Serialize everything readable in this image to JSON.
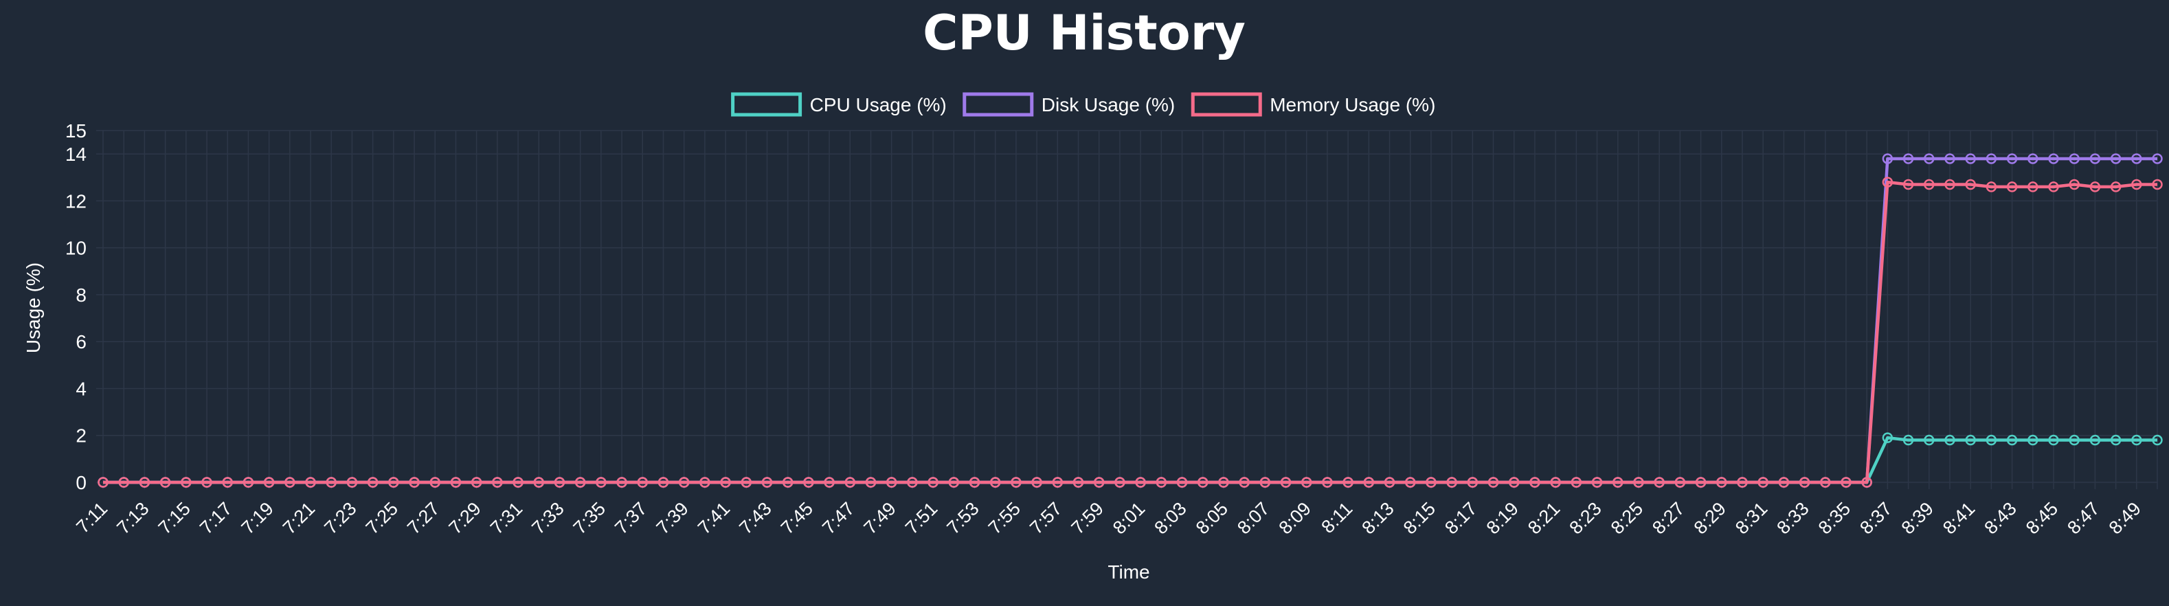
{
  "chart_data": {
    "type": "line",
    "title": "CPU History",
    "xlabel": "Time",
    "ylabel": "Usage (%)",
    "ylim": [
      0,
      15
    ],
    "y_ticks": [
      0,
      2,
      4,
      6,
      8,
      10,
      12,
      14,
      15
    ],
    "x_tick_labels": [
      "7:11",
      "7:13",
      "7:15",
      "7:17",
      "7:19",
      "7:21",
      "7:23",
      "7:25",
      "7:27",
      "7:29",
      "7:31",
      "7:33",
      "7:35",
      "7:37",
      "7:39",
      "7:41",
      "7:43",
      "7:45",
      "7:47",
      "7:49",
      "7:51",
      "7:53",
      "7:55",
      "7:57",
      "7:59",
      "8:01",
      "8:03",
      "8:05",
      "8:07",
      "8:09",
      "8:11",
      "8:13",
      "8:15",
      "8:17",
      "8:19",
      "8:21",
      "8:23",
      "8:25",
      "8:27",
      "8:29",
      "8:31",
      "8:33",
      "8:35",
      "8:37",
      "8:39",
      "8:41",
      "8:43",
      "8:45",
      "8:47",
      "8:49"
    ],
    "x_start": "7:11",
    "x_end": "8:50",
    "legend_position": "top-center",
    "grid": true,
    "series": [
      {
        "name": "CPU Usage (%)",
        "color": "#4fd1c5",
        "zero_until": "8:36",
        "values_from_8_37": [
          1.9,
          1.8,
          1.8,
          1.8,
          1.8,
          1.8,
          1.8,
          1.8,
          1.8,
          1.8,
          1.8,
          1.8,
          1.8,
          1.8
        ]
      },
      {
        "name": "Disk Usage (%)",
        "color": "#9f7aea",
        "zero_until": "8:36",
        "values_from_8_37": [
          13.8,
          13.8,
          13.8,
          13.8,
          13.8,
          13.8,
          13.8,
          13.8,
          13.8,
          13.8,
          13.8,
          13.8,
          13.8,
          13.8
        ]
      },
      {
        "name": "Memory Usage (%)",
        "color": "#f56b8a",
        "zero_until": "8:36",
        "values_from_8_37": [
          12.8,
          12.7,
          12.7,
          12.7,
          12.7,
          12.6,
          12.6,
          12.6,
          12.6,
          12.7,
          12.6,
          12.6,
          12.7,
          12.7
        ]
      }
    ]
  },
  "colors": {
    "background": "#1f2937",
    "grid": "#2d3748",
    "text": "#ffffff"
  }
}
